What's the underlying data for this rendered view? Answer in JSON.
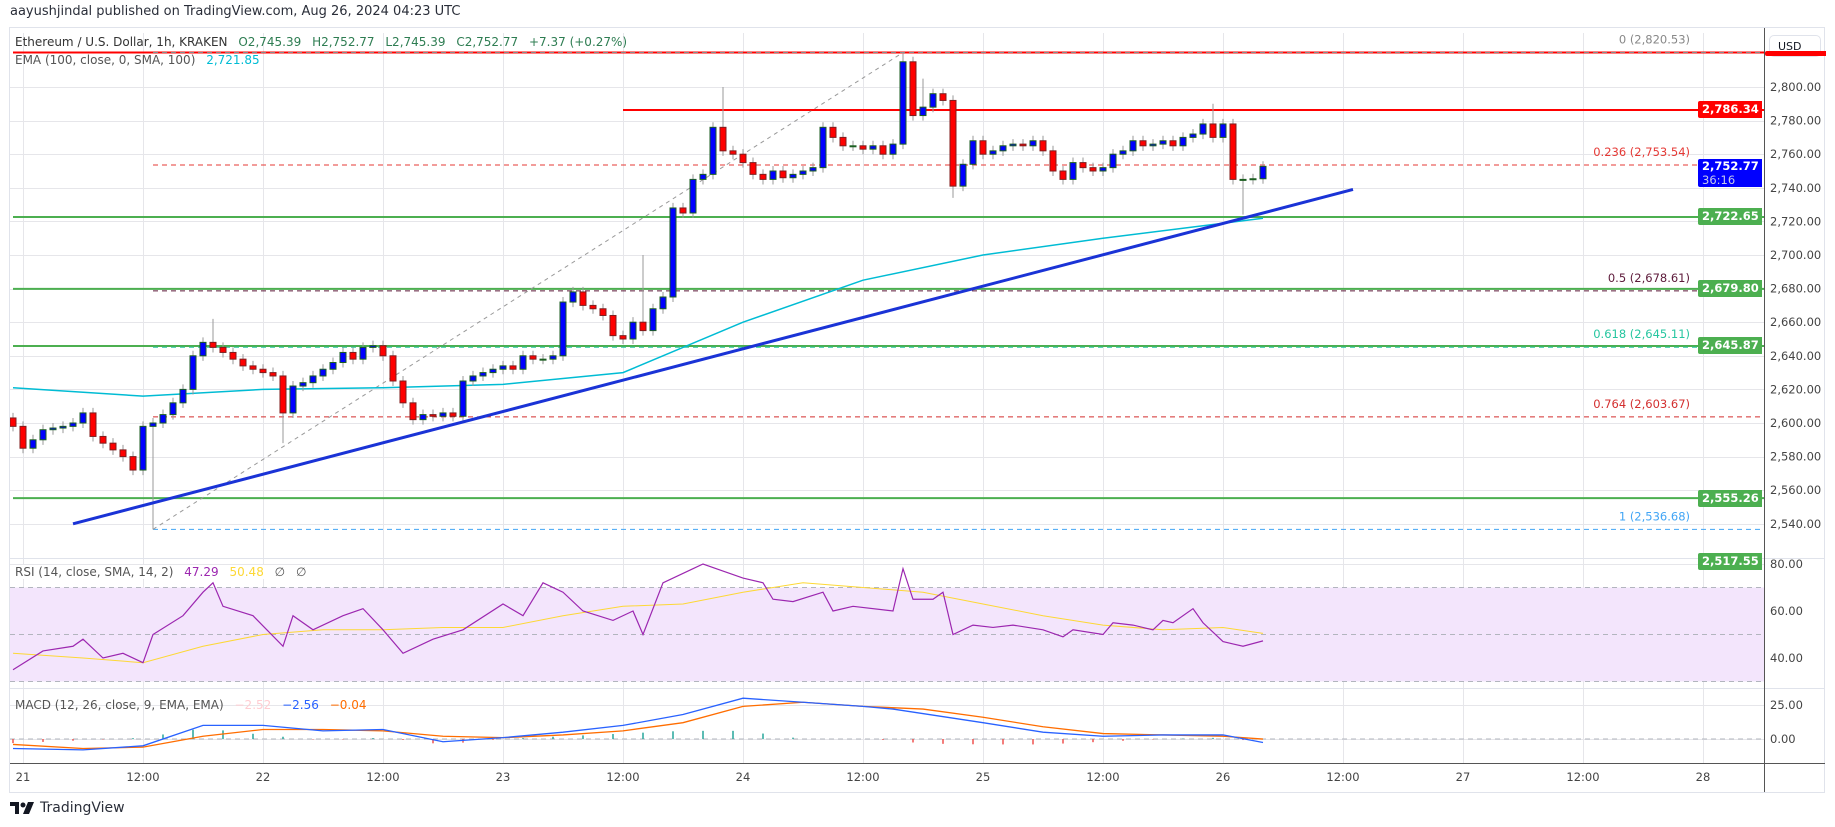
{
  "header": {
    "published": "aayushjindal published on TradingView.com, Aug 26, 2024 04:23 UTC"
  },
  "legend": {
    "symbol": "Ethereum / U.S. Dollar, 1h, KRAKEN",
    "open": "O2,745.39",
    "high": "H2,752.77",
    "low": "L2,745.39",
    "close": "C2,752.77",
    "change": "+7.37 (+0.27%)",
    "ema_label": "EMA (100, close, 0, SMA, 100)",
    "ema_value": "2,721.85",
    "rsi_label": "RSI (14, close, SMA, 14, 2)",
    "rsi_value": "47.29",
    "rsi_sma_value": "50.48",
    "rsi_extra1": "∅",
    "rsi_extra2": "∅",
    "macd_label": "MACD (12, 26, close, 9, EMA, EMA)",
    "macd_hist_value": "−2.52",
    "macd_value": "−2.56",
    "signal_value": "−0.04"
  },
  "currency": "USD",
  "footer": {
    "brand": "TradingView"
  },
  "colors": {
    "up": "#0000ff",
    "up_border": "#1b5e20",
    "down": "#ff0000",
    "down_border": "#7f1d1d",
    "ema": "#00bcd4",
    "trendline": "#1a33d6",
    "support": "#4caf50",
    "resistance": "#ff0000",
    "rsi": "#9c27b0",
    "rsi_sma": "#fdd835",
    "macd": "#2962ff",
    "signal": "#ff6d00",
    "last_price": "#0000ff"
  },
  "chart_data": [
    {
      "type": "candlestick",
      "title": "Ethereum / U.S. Dollar, 1h, KRAKEN",
      "start": "20 23:00",
      "interval_hours": 1,
      "close": [
        2598,
        2585,
        2590,
        2596,
        2597,
        2598,
        2600,
        2606,
        2592,
        2588,
        2584,
        2580,
        2572,
        2598,
        2600,
        2605,
        2612,
        2620,
        2640,
        2648,
        2645,
        2642,
        2638,
        2634,
        2632,
        2630,
        2628,
        2606,
        2622,
        2624,
        2628,
        2632,
        2636,
        2642,
        2638,
        2645,
        2646,
        2640,
        2625,
        2612,
        2602,
        2605,
        2604,
        2606,
        2604,
        2625,
        2628,
        2630,
        2632,
        2634,
        2632,
        2640,
        2638,
        2638,
        2640,
        2672,
        2678,
        2670,
        2668,
        2664,
        2652,
        2650,
        2660,
        2655,
        2668,
        2675,
        2728,
        2725,
        2745,
        2748,
        2776,
        2762,
        2760,
        2755,
        2748,
        2745,
        2750,
        2746,
        2748,
        2750,
        2752,
        2776,
        2770,
        2765,
        2765,
        2763,
        2765,
        2760,
        2766,
        2815,
        2783,
        2788,
        2796,
        2792,
        2741,
        2754,
        2768,
        2760,
        2762,
        2765,
        2766,
        2765,
        2768,
        2762,
        2750,
        2745,
        2755,
        2752,
        2750,
        2752,
        2760,
        2762,
        2768,
        2765,
        2766,
        2768,
        2765,
        2770,
        2772,
        2778,
        2770,
        2778,
        2745,
        2745,
        2745.39,
        2752.77
      ],
      "notable_wicks": [
        {
          "t": "21 13:00",
          "low": 2536.68
        },
        {
          "t": "21 19:00",
          "high": 2662
        },
        {
          "t": "22 02:00",
          "low": 2588
        },
        {
          "t": "23 14:00",
          "high": 2700
        },
        {
          "t": "23 22:00",
          "high": 2800
        },
        {
          "t": "24 16:00",
          "high": 2820.53
        },
        {
          "t": "24 18:00",
          "high": 2805
        },
        {
          "t": "24 21:00",
          "low": 2734
        },
        {
          "t": "25 23:00",
          "high": 2790
        },
        {
          "t": "26 02:00",
          "low": 2724
        }
      ],
      "last_price": "2,752.77",
      "countdown": "36:16",
      "ema100": [
        [
          "20 23:00",
          2621
        ],
        [
          "21 12:00",
          2616
        ],
        [
          "22 00:00",
          2620
        ],
        [
          "22 12:00",
          2621
        ],
        [
          "23 00:00",
          2623
        ],
        [
          "23 12:00",
          2630
        ],
        [
          "24 00:00",
          2660
        ],
        [
          "24 12:00",
          2685
        ],
        [
          "25 00:00",
          2700
        ],
        [
          "25 12:00",
          2710
        ],
        [
          "26 04:00",
          2721.85
        ]
      ],
      "y_ticks": [
        "2,540.00",
        "2,560.00",
        "2,580.00",
        "2,600.00",
        "2,620.00",
        "2,640.00",
        "2,660.00",
        "2,680.00",
        "2,700.00",
        "2,720.00",
        "2,740.00",
        "2,760.00",
        "2,780.00",
        "2,800.00"
      ],
      "y_tick_values": [
        2540,
        2560,
        2580,
        2600,
        2620,
        2640,
        2660,
        2680,
        2700,
        2720,
        2740,
        2760,
        2780,
        2800
      ],
      "horizontal_lines": [
        {
          "price": 2820.53,
          "color": "#ff0000",
          "from": "20 23:00",
          "label": ""
        },
        {
          "price": 2786.34,
          "color": "#ff0000",
          "from": "23 12:00",
          "label": "2,786.34"
        },
        {
          "price": 2722.65,
          "color": "#4caf50",
          "from": "20 23:00",
          "label": "2,722.65"
        },
        {
          "price": 2679.8,
          "color": "#4caf50",
          "from": "20 23:00",
          "label": "2,679.80"
        },
        {
          "price": 2645.87,
          "color": "#4caf50",
          "from": "20 23:00",
          "label": "2,645.87"
        },
        {
          "price": 2555.26,
          "color": "#4caf50",
          "from": "20 23:00",
          "label": "2,555.26"
        }
      ],
      "extra_badge": {
        "price": 2517.55,
        "label": "2,517.55",
        "color": "#4caf50"
      },
      "trendline": {
        "from": [
          "21 05:00",
          2540
        ],
        "to": [
          "26 13:00",
          2739
        ]
      },
      "fibonacci": {
        "from": [
          "21 13:00",
          2536.68
        ],
        "to": [
          "24 16:00",
          2820.53
        ],
        "levels": [
          {
            "level": "0",
            "price": 2820.53,
            "label": "0 (2,820.53)",
            "color": "#888888"
          },
          {
            "level": "0.236",
            "price": 2753.54,
            "label": "0.236 (2,753.54)",
            "color": "#e53935"
          },
          {
            "level": "0.5",
            "price": 2678.61,
            "label": "0.5 (2,678.61)",
            "color": "#5d1a3a"
          },
          {
            "level": "0.618",
            "price": 2645.11,
            "label": "0.618 (2,645.11)",
            "color": "#26c6a0"
          },
          {
            "level": "0.764",
            "price": 2603.67,
            "label": "0.764 (2,603.67)",
            "color": "#d32f2f"
          },
          {
            "level": "1",
            "price": 2536.68,
            "label": "1 (2,536.68)",
            "color": "#42a5f5"
          }
        ]
      },
      "x_ticks": [
        {
          "t": "21 00:00",
          "label": "21"
        },
        {
          "t": "21 12:00",
          "label": "12:00"
        },
        {
          "t": "22 00:00",
          "label": "22"
        },
        {
          "t": "22 12:00",
          "label": "12:00"
        },
        {
          "t": "23 00:00",
          "label": "23"
        },
        {
          "t": "23 12:00",
          "label": "12:00"
        },
        {
          "t": "24 00:00",
          "label": "24"
        },
        {
          "t": "24 12:00",
          "label": "12:00"
        },
        {
          "t": "25 00:00",
          "label": "25"
        },
        {
          "t": "25 12:00",
          "label": "12:00"
        },
        {
          "t": "26 00:00",
          "label": "26"
        },
        {
          "t": "26 12:00",
          "label": "12:00"
        },
        {
          "t": "27 00:00",
          "label": "27"
        },
        {
          "t": "27 12:00",
          "label": "12:00"
        },
        {
          "t": "28 00:00",
          "label": "28"
        }
      ]
    },
    {
      "type": "line",
      "title": "RSI (14, close, SMA, 14, 2)",
      "ylim": [
        30,
        80
      ],
      "y_ticks": [
        "40.00",
        "60.00",
        "80.00"
      ],
      "y_tick_values": [
        40,
        60,
        80
      ],
      "band": [
        30,
        70
      ],
      "series": [
        {
          "values": [
            [
              "20 23:00",
              35
            ],
            [
              "21 02:00",
              43
            ],
            [
              "21 05:00",
              45
            ],
            [
              "21 06:00",
              48
            ],
            [
              "21 08:00",
              40
            ],
            [
              "21 10:00",
              42
            ],
            [
              "21 12:00",
              38
            ],
            [
              "21 13:00",
              50
            ],
            [
              "21 16:00",
              58
            ],
            [
              "21 18:00",
              68
            ],
            [
              "21 19:00",
              72
            ],
            [
              "21 20:00",
              62
            ],
            [
              "21 23:00",
              58
            ],
            [
              "22 02:00",
              45
            ],
            [
              "22 03:00",
              58
            ],
            [
              "22 05:00",
              52
            ],
            [
              "22 08:00",
              58
            ],
            [
              "22 10:00",
              61
            ],
            [
              "22 12:00",
              52
            ],
            [
              "22 14:00",
              42
            ],
            [
              "22 17:00",
              48
            ],
            [
              "22 20:00",
              52
            ],
            [
              "23 00:00",
              63
            ],
            [
              "23 02:00",
              58
            ],
            [
              "23 04:00",
              72
            ],
            [
              "23 06:00",
              68
            ],
            [
              "23 08:00",
              60
            ],
            [
              "23 11:00",
              56
            ],
            [
              "23 13:00",
              60
            ],
            [
              "23 14:00",
              50
            ],
            [
              "23 16:00",
              72
            ],
            [
              "23 19:00",
              78
            ],
            [
              "23 20:00",
              80
            ],
            [
              "23 22:00",
              77
            ],
            [
              "24 00:00",
              74
            ],
            [
              "24 02:00",
              72
            ],
            [
              "24 03:00",
              65
            ],
            [
              "24 05:00",
              64
            ],
            [
              "24 08:00",
              68
            ],
            [
              "24 09:00",
              60
            ],
            [
              "24 11:00",
              62
            ],
            [
              "24 15:00",
              60
            ],
            [
              "24 16:00",
              78
            ],
            [
              "24 17:00",
              65
            ],
            [
              "24 19:00",
              65
            ],
            [
              "24 20:00",
              68
            ],
            [
              "24 21:00",
              50
            ],
            [
              "24 23:00",
              54
            ],
            [
              "25 01:00",
              53
            ],
            [
              "25 03:00",
              54
            ],
            [
              "25 06:00",
              52
            ],
            [
              "25 08:00",
              49
            ],
            [
              "25 09:00",
              52
            ],
            [
              "25 12:00",
              50
            ],
            [
              "25 13:00",
              55
            ],
            [
              "25 15:00",
              54
            ],
            [
              "25 17:00",
              52
            ],
            [
              "25 18:00",
              56
            ],
            [
              "25 19:00",
              55
            ],
            [
              "25 21:00",
              61
            ],
            [
              "25 22:00",
              55
            ],
            [
              "26 00:00",
              47
            ],
            [
              "26 01:00",
              46
            ],
            [
              "26 02:00",
              45
            ],
            [
              "26 04:00",
              47.29
            ]
          ]
        },
        {
          "values": [
            [
              "20 23:00",
              42
            ],
            [
              "21 06:00",
              40
            ],
            [
              "21 12:00",
              38
            ],
            [
              "21 18:00",
              45
            ],
            [
              "22 00:00",
              50
            ],
            [
              "22 06:00",
              52
            ],
            [
              "22 12:00",
              52
            ],
            [
              "22 18:00",
              53
            ],
            [
              "23 00:00",
              53
            ],
            [
              "23 06:00",
              58
            ],
            [
              "23 12:00",
              62
            ],
            [
              "23 18:00",
              63
            ],
            [
              "24 00:00",
              68
            ],
            [
              "24 06:00",
              72
            ],
            [
              "24 12:00",
              70
            ],
            [
              "24 18:00",
              68
            ],
            [
              "25 00:00",
              63
            ],
            [
              "25 06:00",
              58
            ],
            [
              "25 12:00",
              54
            ],
            [
              "25 18:00",
              52
            ],
            [
              "26 00:00",
              53
            ],
            [
              "26 04:00",
              50.48
            ]
          ]
        }
      ]
    },
    {
      "type": "line",
      "title": "MACD (12, 26, close, 9, EMA, EMA)",
      "y_ticks": [
        "0.00",
        "25.00"
      ],
      "y_tick_values": [
        0,
        25
      ],
      "series": [
        {
          "values": [
            [
              "20 23:00",
              -7
            ],
            [
              "21 06:00",
              -8
            ],
            [
              "21 12:00",
              -5
            ],
            [
              "21 18:00",
              10
            ],
            [
              "22 00:00",
              10
            ],
            [
              "22 06:00",
              6
            ],
            [
              "22 12:00",
              7
            ],
            [
              "22 18:00",
              -2
            ],
            [
              "23 00:00",
              1
            ],
            [
              "23 06:00",
              5
            ],
            [
              "23 12:00",
              10
            ],
            [
              "23 18:00",
              18
            ],
            [
              "24 00:00",
              30
            ],
            [
              "24 06:00",
              27
            ],
            [
              "24 12:00",
              24
            ],
            [
              "24 15:00",
              22
            ],
            [
              "25 00:00",
              12
            ],
            [
              "25 06:00",
              5
            ],
            [
              "25 12:00",
              2
            ],
            [
              "25 18:00",
              3
            ],
            [
              "26 00:00",
              3
            ],
            [
              "26 04:00",
              -2.56
            ]
          ]
        },
        {
          "values": [
            [
              "20 23:00",
              -4
            ],
            [
              "21 06:00",
              -7
            ],
            [
              "21 12:00",
              -6
            ],
            [
              "21 18:00",
              2
            ],
            [
              "22 00:00",
              7
            ],
            [
              "22 06:00",
              7
            ],
            [
              "22 12:00",
              6
            ],
            [
              "22 18:00",
              2
            ],
            [
              "23 00:00",
              1
            ],
            [
              "23 06:00",
              3
            ],
            [
              "23 12:00",
              6
            ],
            [
              "23 18:00",
              12
            ],
            [
              "24 00:00",
              24
            ],
            [
              "24 06:00",
              27
            ],
            [
              "24 12:00",
              24
            ],
            [
              "24 18:00",
              22
            ],
            [
              "25 00:00",
              16
            ],
            [
              "25 06:00",
              9
            ],
            [
              "25 12:00",
              4
            ],
            [
              "25 18:00",
              3
            ],
            [
              "26 00:00",
              2
            ],
            [
              "26 04:00",
              -0.04
            ]
          ]
        }
      ]
    }
  ]
}
